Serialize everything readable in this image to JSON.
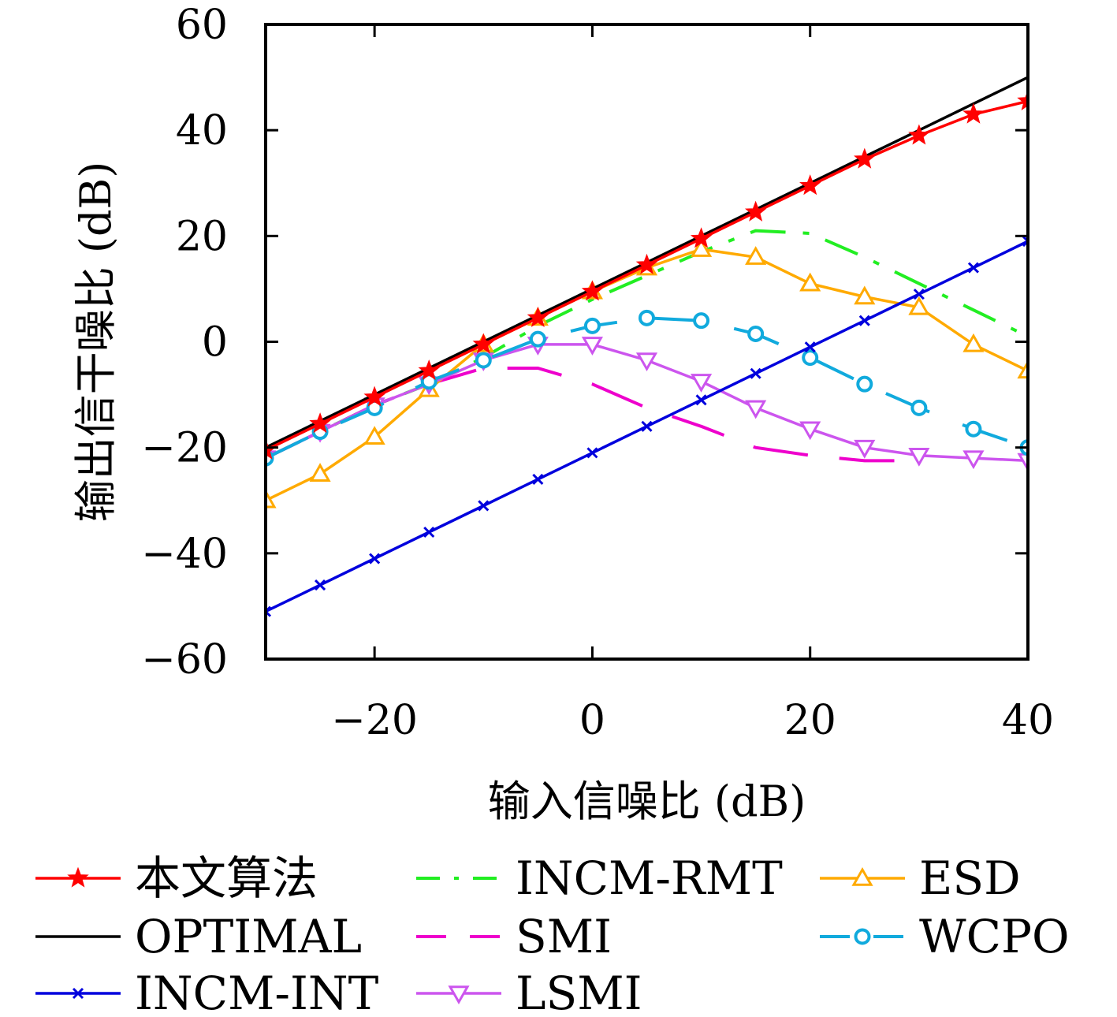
{
  "chart_data": {
    "type": "line",
    "xlabel": "输入信噪比 (dB)",
    "ylabel": "输出信干噪比 (dB)",
    "xlim": [
      -30,
      40
    ],
    "ylim": [
      -60,
      60
    ],
    "xticks": [
      -20,
      0,
      20,
      40
    ],
    "yticks": [
      -60,
      -40,
      -20,
      0,
      20,
      40,
      60
    ],
    "xtick_labels": [
      "−20",
      "0",
      "20",
      "40"
    ],
    "ytick_labels": [
      "−60",
      "−40",
      "−20",
      "0",
      "20",
      "40",
      "60"
    ],
    "grid": false,
    "legend_position": "bottom",
    "x": [
      -30,
      -25,
      -20,
      -15,
      -10,
      -5,
      0,
      5,
      10,
      15,
      20,
      25,
      30,
      35,
      40
    ],
    "series": [
      {
        "name": "本文算法",
        "color": "#ff0000",
        "dash": "solid",
        "marker": "star",
        "values": [
          -20.5,
          -15.5,
          -10.5,
          -5.5,
          -0.5,
          4.5,
          9.5,
          14.5,
          19.5,
          24.5,
          29.5,
          34.5,
          39,
          43,
          45.5
        ]
      },
      {
        "name": "OPTIMAL",
        "color": "#000000",
        "dash": "solid",
        "marker": "none",
        "values": [
          -20,
          -15,
          -10,
          -5,
          0,
          5,
          10,
          15,
          20,
          25,
          30,
          35,
          40,
          45,
          50
        ]
      },
      {
        "name": "INCM-INT",
        "color": "#0000dd",
        "dash": "solid",
        "marker": "x",
        "values": [
          -51,
          -46,
          -41,
          -36,
          -31,
          -26,
          -21,
          -16,
          -11,
          -6,
          -1,
          4,
          9,
          14,
          19
        ]
      },
      {
        "name": "INCM-RMT",
        "color": "#22ee22",
        "dash": "dashdot",
        "marker": "none",
        "values": [
          -22,
          -17,
          -12,
          -8,
          -3,
          3,
          8,
          12.5,
          17,
          21,
          20.5,
          16,
          11,
          6,
          1
        ]
      },
      {
        "name": "SMI",
        "color": "#ee00cc",
        "dash": "dashed",
        "marker": "none",
        "values": [
          -22,
          -17,
          -12,
          -8,
          -5,
          -5,
          -8,
          -12.5,
          -16,
          -20,
          -21.5,
          -22.5,
          -22.5,
          null,
          null
        ]
      },
      {
        "name": "LSMI",
        "color": "#cc55ee",
        "dash": "solid",
        "marker": "triangle-down",
        "values": [
          -22,
          -17,
          -12,
          -8,
          -3.5,
          -0.5,
          -0.5,
          -3.5,
          -7.5,
          -12.5,
          -16.5,
          -20,
          -21.5,
          -22,
          -22.5
        ]
      },
      {
        "name": "ESD",
        "color": "#ffaa00",
        "dash": "solid",
        "marker": "triangle-up",
        "values": [
          -30,
          -25,
          -18,
          -9,
          -0.5,
          4.5,
          9.5,
          14,
          17.5,
          16,
          11,
          8.5,
          6.5,
          -0.5,
          -5.5
        ]
      },
      {
        "name": "WCPO",
        "color": "#11aadd",
        "dash": "dashed-long",
        "marker": "circle",
        "values": [
          -22,
          -17,
          -12.5,
          -7.5,
          -3.5,
          0.5,
          3,
          4.5,
          4,
          1.5,
          -3,
          -8,
          -12.5,
          -16.5,
          -20
        ]
      }
    ]
  }
}
